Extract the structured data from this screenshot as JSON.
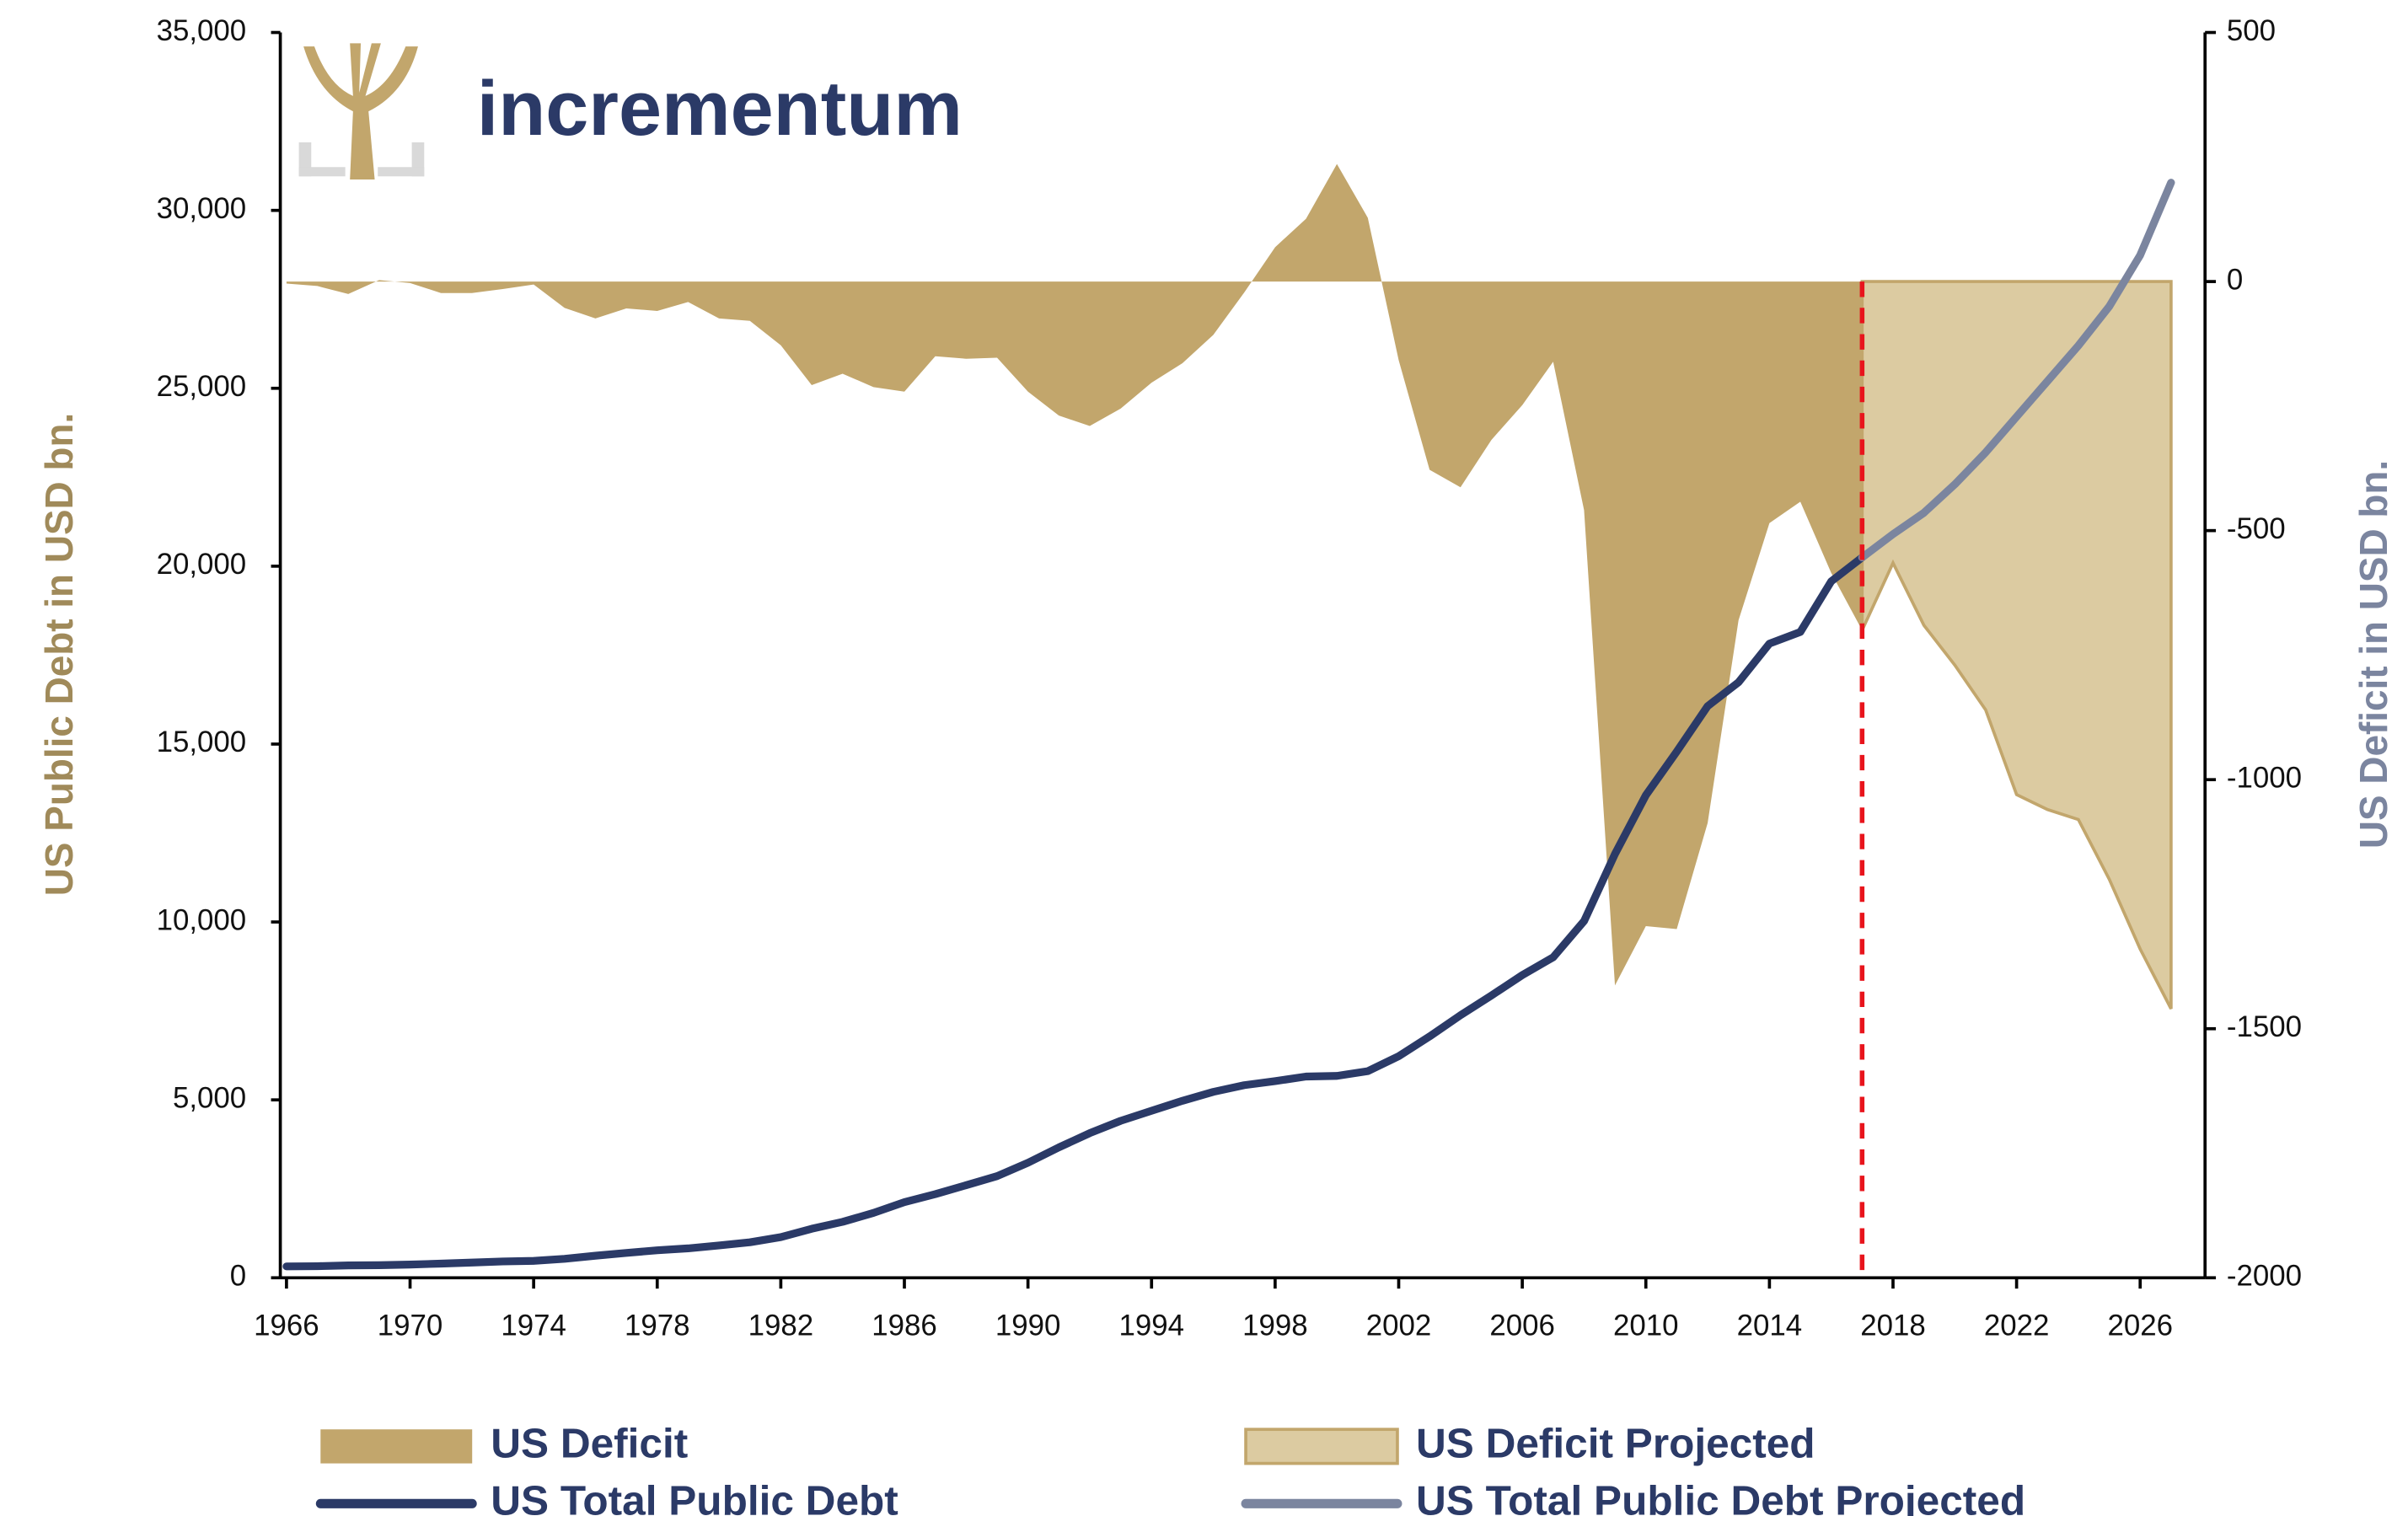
{
  "chart_data": {
    "type": "line",
    "logo": "incrementum",
    "y_label": "US Public Debt in USD bn.",
    "y2_label": "US Deficit in USD bn.",
    "xlim": [
      1965.8,
      2028.1
    ],
    "xticks": [
      1966,
      1970,
      1974,
      1978,
      1982,
      1986,
      1990,
      1994,
      1998,
      2002,
      2006,
      2010,
      2014,
      2018,
      2022,
      2026
    ],
    "ylim": [
      0,
      35000
    ],
    "yticks": [
      0,
      {
        "value": 5000,
        "label": "5,000"
      },
      {
        "value": 10000,
        "label": "10,000"
      },
      {
        "value": 15000,
        "label": "15,000"
      },
      {
        "value": 20000,
        "label": "20,000"
      },
      {
        "value": 25000,
        "label": "25,000"
      },
      {
        "value": 30000,
        "label": "30,000"
      },
      {
        "value": 35000,
        "label": "35,000"
      }
    ],
    "y2lim": [
      -2000,
      500
    ],
    "y2ticks": [
      -2000,
      -1500,
      -1000,
      -500,
      0,
      500
    ],
    "series": [
      {
        "name": "US Deficit",
        "type": "area",
        "axis": "y2",
        "color": "#c2a66c",
        "x": [
          1966,
          1967,
          1968,
          1969,
          1970,
          1971,
          1972,
          1973,
          1974,
          1975,
          1976,
          1977,
          1978,
          1979,
          1980,
          1981,
          1982,
          1983,
          1984,
          1985,
          1986,
          1987,
          1988,
          1989,
          1990,
          1991,
          1992,
          1993,
          1994,
          1995,
          1996,
          1997,
          1998,
          1999,
          2000,
          2001,
          2002,
          2003,
          2004,
          2005,
          2006,
          2007,
          2008,
          2009,
          2010,
          2011,
          2012,
          2013,
          2014,
          2015,
          2016,
          2017
        ],
        "values": [
          -4,
          -9,
          -25,
          3,
          -3,
          -23,
          -23,
          -15,
          -6,
          -53,
          -74,
          -54,
          -59,
          -41,
          -74,
          -79,
          -128,
          -208,
          -185,
          -212,
          -221,
          -150,
          -155,
          -153,
          -221,
          -269,
          -290,
          -255,
          -203,
          -164,
          -107,
          -22,
          69,
          126,
          236,
          128,
          -158,
          -378,
          -413,
          -318,
          -248,
          -161,
          -459,
          -1413,
          -1294,
          -1300,
          -1087,
          -680,
          -485,
          -442,
          -585,
          -700
        ]
      },
      {
        "name": "US Deficit Projected",
        "type": "area",
        "axis": "y2",
        "color": "#dccba1",
        "edge_color": "#c2a66c",
        "x": [
          2017,
          2018,
          2019,
          2020,
          2021,
          2022,
          2023,
          2024,
          2025,
          2026,
          2027
        ],
        "values": [
          -700,
          -565,
          -690,
          -770,
          -860,
          -1030,
          -1060,
          -1080,
          -1200,
          -1340,
          -1460
        ]
      },
      {
        "name": "US Total Public Debt",
        "type": "line",
        "axis": "y",
        "color": "#2b3a67",
        "x": [
          1966,
          1967,
          1968,
          1969,
          1970,
          1971,
          1972,
          1973,
          1974,
          1975,
          1976,
          1977,
          1978,
          1979,
          1980,
          1981,
          1982,
          1983,
          1984,
          1985,
          1986,
          1987,
          1988,
          1989,
          1990,
          1991,
          1992,
          1993,
          1994,
          1995,
          1996,
          1997,
          1998,
          1999,
          2000,
          2001,
          2002,
          2003,
          2004,
          2005,
          2006,
          2007,
          2008,
          2009,
          2010,
          2011,
          2012,
          2013,
          2014,
          2015,
          2016,
          2017
        ],
        "values": [
          320,
          326,
          348,
          354,
          371,
          398,
          427,
          458,
          475,
          533,
          620,
          699,
          772,
          827,
          908,
          998,
          1142,
          1377,
          1572,
          1823,
          2125,
          2350,
          2602,
          2857,
          3233,
          3665,
          4065,
          4411,
          4693,
          4974,
          5225,
          5413,
          5526,
          5656,
          5674,
          5807,
          6228,
          6783,
          7379,
          7933,
          8507,
          9008,
          10025,
          11910,
          13562,
          14790,
          16066,
          16738,
          17824,
          18151,
          19573,
          20245
        ]
      },
      {
        "name": "US Total Public Debt Projected",
        "type": "line",
        "axis": "y",
        "color": "#7b859f",
        "x": [
          2017,
          2018,
          2019,
          2020,
          2021,
          2022,
          2023,
          2024,
          2025,
          2026,
          2027
        ],
        "values": [
          20245,
          20900,
          21500,
          22300,
          23200,
          24200,
          25200,
          26200,
          27300,
          28740,
          30780
        ]
      }
    ],
    "projection_line_color": "#e8141c"
  }
}
